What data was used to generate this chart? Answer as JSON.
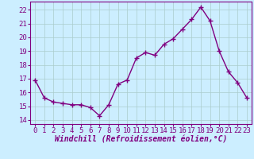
{
  "x": [
    0,
    1,
    2,
    3,
    4,
    5,
    6,
    7,
    8,
    9,
    10,
    11,
    12,
    13,
    14,
    15,
    16,
    17,
    18,
    19,
    20,
    21,
    22,
    23
  ],
  "y": [
    16.9,
    15.6,
    15.3,
    15.2,
    15.1,
    15.1,
    14.9,
    14.3,
    15.1,
    16.6,
    16.9,
    18.5,
    18.9,
    18.7,
    19.5,
    19.9,
    20.6,
    21.3,
    22.2,
    21.2,
    19.0,
    17.5,
    16.7,
    15.6
  ],
  "line_color": "#800080",
  "marker": "+",
  "marker_size": 4,
  "marker_lw": 1.0,
  "bg_color": "#cceeff",
  "grid_color": "#aacccc",
  "xlabel": "Windchill (Refroidissement éolien,°C)",
  "xlabel_fontsize": 7,
  "yticks": [
    14,
    15,
    16,
    17,
    18,
    19,
    20,
    21,
    22
  ],
  "ylim": [
    13.7,
    22.6
  ],
  "xlim": [
    -0.5,
    23.5
  ],
  "tick_fontsize": 6.5,
  "xticks": [
    0,
    1,
    2,
    3,
    4,
    5,
    6,
    7,
    8,
    9,
    10,
    11,
    12,
    13,
    14,
    15,
    16,
    17,
    18,
    19,
    20,
    21,
    22,
    23
  ],
  "line_width": 1.0,
  "spine_color": "#800080",
  "label_color": "#800080"
}
